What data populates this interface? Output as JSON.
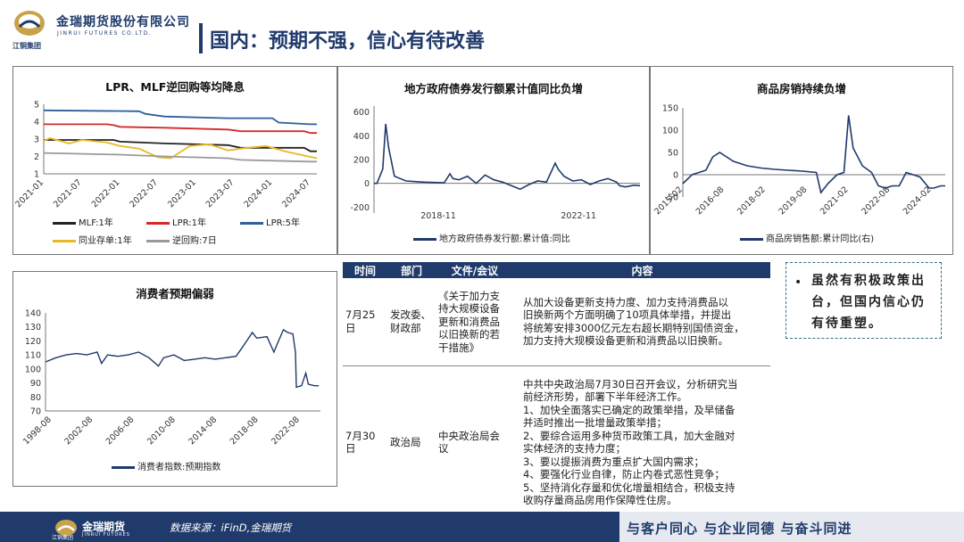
{
  "header": {
    "company_cn": "金瑞期货股份有限公司",
    "company_en": "JINRUI FUTURES CO.LTD.",
    "group_name": "江铜集团",
    "page_title": "国内：预期不强，信心有待改善"
  },
  "charts": {
    "lpr": {
      "title": "LPR、MLF逆回购等均降息",
      "chart_data": {
        "type": "line",
        "x_ticks": [
          "2021-01",
          "2021-07",
          "2022-01",
          "2022-07",
          "2023-01",
          "2023-07",
          "2024-01",
          "2024-07"
        ],
        "y_ticks": [
          1,
          2,
          3,
          4,
          5
        ],
        "ylim": [
          1,
          5
        ],
        "series": [
          {
            "name": "MLF:1年",
            "color": "#222222",
            "points": [
              [
                "2021-01",
                2.95
              ],
              [
                "2021-12",
                2.95
              ],
              [
                "2022-01",
                2.85
              ],
              [
                "2022-08",
                2.75
              ],
              [
                "2023-06",
                2.65
              ],
              [
                "2023-08",
                2.5
              ],
              [
                "2024-06",
                2.5
              ],
              [
                "2024-07",
                2.3
              ],
              [
                "2024-08",
                2.3
              ]
            ]
          },
          {
            "name": "LPR:1年",
            "color": "#d22a2a",
            "points": [
              [
                "2021-01",
                3.85
              ],
              [
                "2021-11",
                3.85
              ],
              [
                "2021-12",
                3.8
              ],
              [
                "2022-01",
                3.7
              ],
              [
                "2022-08",
                3.65
              ],
              [
                "2023-06",
                3.55
              ],
              [
                "2023-08",
                3.45
              ],
              [
                "2024-06",
                3.45
              ],
              [
                "2024-07",
                3.35
              ],
              [
                "2024-08",
                3.35
              ]
            ]
          },
          {
            "name": "LPR:5年",
            "color": "#2e5f9a",
            "points": [
              [
                "2021-01",
                4.65
              ],
              [
                "2022-04",
                4.6
              ],
              [
                "2022-05",
                4.45
              ],
              [
                "2022-08",
                4.3
              ],
              [
                "2023-06",
                4.2
              ],
              [
                "2024-01",
                4.2
              ],
              [
                "2024-02",
                3.95
              ],
              [
                "2024-07",
                3.85
              ],
              [
                "2024-08",
                3.85
              ]
            ]
          },
          {
            "name": "同业存单:1年",
            "color": "#e8b923",
            "points": [
              [
                "2021-01",
                2.9
              ],
              [
                "2021-02",
                3.05
              ],
              [
                "2021-05",
                2.75
              ],
              [
                "2021-07",
                2.95
              ],
              [
                "2021-11",
                2.8
              ],
              [
                "2022-01",
                2.6
              ],
              [
                "2022-04",
                2.45
              ],
              [
                "2022-07",
                1.95
              ],
              [
                "2022-09",
                1.9
              ],
              [
                "2022-12",
                2.6
              ],
              [
                "2023-03",
                2.7
              ],
              [
                "2023-06",
                2.35
              ],
              [
                "2023-09",
                2.5
              ],
              [
                "2023-12",
                2.6
              ],
              [
                "2024-03",
                2.3
              ],
              [
                "2024-06",
                2.05
              ],
              [
                "2024-08",
                1.9
              ]
            ]
          },
          {
            "name": "逆回购:7日",
            "color": "#999999",
            "points": [
              [
                "2021-01",
                2.2
              ],
              [
                "2022-01",
                2.1
              ],
              [
                "2022-08",
                2.0
              ],
              [
                "2023-06",
                1.9
              ],
              [
                "2023-08",
                1.8
              ],
              [
                "2024-07",
                1.7
              ],
              [
                "2024-08",
                1.7
              ]
            ]
          }
        ]
      }
    },
    "bond": {
      "title": "地方政府债券发行额累计值同比负增",
      "chart_data": {
        "type": "line",
        "x_ticks": [
          "2018-11",
          "2022-11"
        ],
        "y_ticks": [
          -200,
          0,
          200,
          400,
          600
        ],
        "ylim": [
          -250,
          650
        ],
        "series": [
          {
            "name": "地方政府债券发行额:累计值:同比",
            "color": "#1f3a6b",
            "points": [
              [
                "2017-01",
                0
              ],
              [
                "2017-02",
                0
              ],
              [
                "2017-04",
                120
              ],
              [
                "2017-05",
                500
              ],
              [
                "2017-06",
                300
              ],
              [
                "2017-08",
                60
              ],
              [
                "2017-12",
                20
              ],
              [
                "2018-06",
                10
              ],
              [
                "2019-01",
                5
              ],
              [
                "2019-03",
                80
              ],
              [
                "2019-04",
                40
              ],
              [
                "2019-06",
                30
              ],
              [
                "2019-09",
                60
              ],
              [
                "2019-12",
                0
              ],
              [
                "2020-03",
                70
              ],
              [
                "2020-06",
                30
              ],
              [
                "2020-09",
                10
              ],
              [
                "2020-12",
                -20
              ],
              [
                "2021-03",
                -50
              ],
              [
                "2021-06",
                -10
              ],
              [
                "2021-09",
                20
              ],
              [
                "2021-12",
                10
              ],
              [
                "2022-03",
                170
              ],
              [
                "2022-04",
                120
              ],
              [
                "2022-06",
                60
              ],
              [
                "2022-09",
                20
              ],
              [
                "2022-12",
                30
              ],
              [
                "2023-03",
                -10
              ],
              [
                "2023-06",
                20
              ],
              [
                "2023-09",
                40
              ],
              [
                "2023-12",
                10
              ],
              [
                "2024-01",
                -20
              ],
              [
                "2024-03",
                -30
              ],
              [
                "2024-06",
                -15
              ],
              [
                "2024-08",
                -20
              ]
            ]
          }
        ]
      }
    },
    "housing": {
      "title": "商品房销持续负增",
      "chart_data": {
        "type": "line",
        "x_ticks": [
          "2015-02",
          "2016-08",
          "2018-02",
          "2019-08",
          "2021-02",
          "2022-08",
          "2024-02"
        ],
        "y_ticks": [
          -50,
          0,
          50,
          100,
          150
        ],
        "ylim": [
          -50,
          150
        ],
        "series": [
          {
            "name": "商品房销售额:累计同比(右)",
            "color": "#1f3a6b",
            "points": [
              [
                "2015-02",
                -20
              ],
              [
                "2015-06",
                0
              ],
              [
                "2015-12",
                10
              ],
              [
                "2016-03",
                40
              ],
              [
                "2016-06",
                50
              ],
              [
                "2016-09",
                40
              ],
              [
                "2016-12",
                30
              ],
              [
                "2017-06",
                20
              ],
              [
                "2017-12",
                15
              ],
              [
                "2018-06",
                12
              ],
              [
                "2018-12",
                10
              ],
              [
                "2019-06",
                8
              ],
              [
                "2019-12",
                5
              ],
              [
                "2020-02",
                -40
              ],
              [
                "2020-05",
                -20
              ],
              [
                "2020-09",
                0
              ],
              [
                "2020-12",
                5
              ],
              [
                "2021-02",
                133
              ],
              [
                "2021-04",
                60
              ],
              [
                "2021-08",
                20
              ],
              [
                "2021-12",
                5
              ],
              [
                "2022-03",
                -25
              ],
              [
                "2022-06",
                -30
              ],
              [
                "2022-09",
                -25
              ],
              [
                "2022-12",
                -25
              ],
              [
                "2023-03",
                5
              ],
              [
                "2023-06",
                0
              ],
              [
                "2023-09",
                -5
              ],
              [
                "2024-01",
                -30
              ],
              [
                "2024-03",
                -30
              ],
              [
                "2024-06",
                -25
              ],
              [
                "2024-08",
                -25
              ]
            ]
          }
        ]
      }
    },
    "consumer": {
      "title": "消费者预期偏弱",
      "chart_data": {
        "type": "line",
        "x_ticks": [
          "1998-08",
          "2002-08",
          "2006-08",
          "2010-08",
          "2014-08",
          "2018-08",
          "2022-08"
        ],
        "y_ticks": [
          70,
          80,
          90,
          100,
          110,
          120,
          130,
          140
        ],
        "ylim": [
          70,
          140
        ],
        "series": [
          {
            "name": "消费者指数:预期指数",
            "color": "#1f3a6b",
            "points": [
              [
                "1998-01",
                105
              ],
              [
                "1999-01",
                108
              ],
              [
                "2000-01",
                110
              ],
              [
                "2001-01",
                111
              ],
              [
                "2002-01",
                110
              ],
              [
                "2003-01",
                112
              ],
              [
                "2003-06",
                104
              ],
              [
                "2004-01",
                110
              ],
              [
                "2005-01",
                109
              ],
              [
                "2006-01",
                110
              ],
              [
                "2007-01",
                112
              ],
              [
                "2008-01",
                108
              ],
              [
                "2008-12",
                102
              ],
              [
                "2009-06",
                108
              ],
              [
                "2010-06",
                110
              ],
              [
                "2011-06",
                106
              ],
              [
                "2012-06",
                107
              ],
              [
                "2013-06",
                108
              ],
              [
                "2014-06",
                107
              ],
              [
                "2015-06",
                108
              ],
              [
                "2016-06",
                109
              ],
              [
                "2017-01",
                115
              ],
              [
                "2018-01",
                126
              ],
              [
                "2018-06",
                122
              ],
              [
                "2019-06",
                123
              ],
              [
                "2020-02",
                112
              ],
              [
                "2020-06",
                118
              ],
              [
                "2021-01",
                128
              ],
              [
                "2021-06",
                126
              ],
              [
                "2021-12",
                125
              ],
              [
                "2022-03",
                112
              ],
              [
                "2022-04",
                87
              ],
              [
                "2022-10",
                88
              ],
              [
                "2023-03",
                97
              ],
              [
                "2023-06",
                89
              ],
              [
                "2024-01",
                88
              ],
              [
                "2024-06",
                88
              ]
            ]
          }
        ]
      }
    }
  },
  "policy_table": {
    "headers": [
      "时间",
      "部门",
      "文件/会议",
      "内容"
    ],
    "rows": [
      {
        "date": "7月25日",
        "dept_lines": [
          "发改委、",
          "财政部"
        ],
        "doc_lines": [
          "《关于加力支",
          "持大规模设备",
          "更新和消费品",
          "以旧换新的若",
          "干措施》"
        ],
        "content_lines": [
          "从加大设备更新支持力度、加力支持消费品以",
          "旧换新两个方面明确了10项具体举措，并提出",
          "将统筹安排3000亿元左右超长期特别国债资金，",
          "加力支持大规模设备更新和消费品以旧换新。"
        ]
      },
      {
        "date": "7月30日",
        "dept_lines": [
          "政治局"
        ],
        "doc_lines": [
          "中央政治局会",
          "议"
        ],
        "content_lines": [
          "中共中央政治局7月30日召开会议，分析研究当",
          "前经济形势，部署下半年经济工作。",
          "1、加快全面落实已确定的政策举措，及早储备",
          "并适时推出一批增量政策举措；",
          "2、要综合运用多种货币政策工具，加大金融对",
          "实体经济的支持力度；",
          "3、要以提振消费为重点扩大国内需求；",
          "4、要强化行业自律，防止内卷式恶性竞争；",
          "5、坚持消化存量和优化增量相结合，积极支持",
          "收购存量商品房用作保障性住房。"
        ]
      }
    ]
  },
  "note": {
    "bullet": "•",
    "text": "虽然有积极政策出台，但国内信心仍有待重塑。"
  },
  "footer": {
    "brand_cn": "金瑞期货",
    "brand_en": "JINRUI FUTURES",
    "group_name": "江铜集团",
    "source": "数据来源：iFinD,金瑞期货",
    "slogan": "与客户同心 与企业同德 与奋斗同进"
  },
  "colors": {
    "brand_navy": "#1f3a6b",
    "logo_gold": "#c9a24a"
  }
}
